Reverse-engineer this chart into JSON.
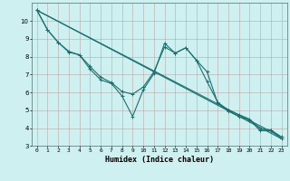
{
  "xlabel": "Humidex (Indice chaleur)",
  "background_color": "#cff0f0",
  "grid_color": "#b8a8a8",
  "line_color": "#1a7070",
  "xlim": [
    -0.5,
    23.5
  ],
  "ylim": [
    3,
    11
  ],
  "yticks": [
    3,
    4,
    5,
    6,
    7,
    8,
    9,
    10
  ],
  "xticks": [
    0,
    1,
    2,
    3,
    4,
    5,
    6,
    7,
    8,
    9,
    10,
    11,
    12,
    13,
    14,
    15,
    16,
    17,
    18,
    19,
    20,
    21,
    22,
    23
  ],
  "series": [
    {
      "x": [
        0,
        1,
        2,
        3,
        4,
        5,
        6,
        7,
        8,
        9,
        10,
        11,
        12,
        13,
        14,
        15,
        16,
        17,
        18,
        19,
        20,
        21,
        22,
        23
      ],
      "y": [
        10.6,
        9.5,
        8.8,
        8.3,
        8.1,
        7.3,
        6.7,
        6.5,
        5.8,
        4.65,
        6.15,
        7.05,
        8.75,
        8.2,
        8.5,
        7.8,
        6.6,
        5.45,
        5.0,
        4.75,
        4.5,
        3.95,
        3.9,
        3.5
      ],
      "marker": true
    },
    {
      "x": [
        0,
        1,
        2,
        3,
        4,
        5,
        6,
        7,
        8,
        9,
        10,
        11,
        12,
        13,
        14,
        15,
        16,
        17,
        18,
        19,
        20,
        21,
        22,
        23
      ],
      "y": [
        10.6,
        9.5,
        8.8,
        8.25,
        8.1,
        7.45,
        6.85,
        6.55,
        6.05,
        5.9,
        6.3,
        7.15,
        8.55,
        8.2,
        8.5,
        7.8,
        7.15,
        5.4,
        4.95,
        4.65,
        4.45,
        3.85,
        3.85,
        3.4
      ],
      "marker": true
    },
    {
      "x": [
        0,
        23
      ],
      "y": [
        10.6,
        3.5
      ],
      "marker": false
    },
    {
      "x": [
        0,
        23
      ],
      "y": [
        10.6,
        3.4
      ],
      "marker": false
    }
  ]
}
